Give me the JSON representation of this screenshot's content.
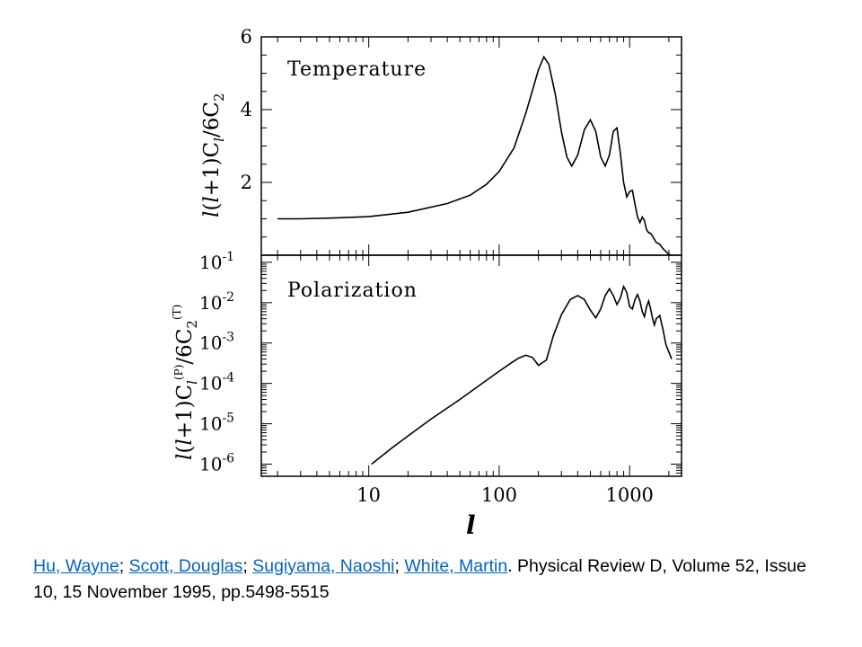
{
  "chart_data": [
    {
      "type": "line",
      "panel": "top",
      "annotation": "Temperature",
      "ylabel": "l(l+1)C_l/6C_2",
      "xscale": "log",
      "xlim": [
        1.5,
        2500
      ],
      "ylim": [
        0,
        6
      ],
      "yticks": [
        2,
        4,
        6
      ],
      "grid": false,
      "series": [
        {
          "x": [
            2,
            3,
            5,
            10,
            20,
            40,
            60,
            80,
            100,
            130,
            160,
            200,
            220,
            240,
            270,
            300,
            330,
            360,
            400,
            450,
            500,
            550,
            600,
            650,
            700,
            750,
            800,
            850,
            900,
            950,
            1000,
            1050,
            1100,
            1150,
            1200,
            1250,
            1300,
            1350,
            1400,
            1450,
            1500,
            1600,
            1700,
            1800,
            1900,
            2000,
            2100
          ],
          "y": [
            1.0,
            1.0,
            1.02,
            1.06,
            1.18,
            1.42,
            1.65,
            1.95,
            2.3,
            2.95,
            3.9,
            5.1,
            5.45,
            5.25,
            4.4,
            3.4,
            2.7,
            2.45,
            2.75,
            3.45,
            3.72,
            3.4,
            2.7,
            2.45,
            2.75,
            3.4,
            3.5,
            2.8,
            2.0,
            1.6,
            1.75,
            1.78,
            1.4,
            1.05,
            0.9,
            1.05,
            0.95,
            0.7,
            0.62,
            0.6,
            0.52,
            0.35,
            0.3,
            0.18,
            0.1,
            0.02,
            0.0
          ]
        }
      ]
    },
    {
      "type": "line",
      "panel": "bottom",
      "annotation": "Polarization",
      "ylabel": "l(l+1)C_l^(P)/6C_2^(T)",
      "xlabel": "l",
      "xscale": "log",
      "yscale": "log",
      "xlim": [
        1.5,
        2500
      ],
      "ylim": [
        5e-07,
        0.15
      ],
      "yticks": [
        "10",
        "10",
        "10",
        "10",
        "10",
        "10"
      ],
      "ytick_exponents": [
        "-1",
        "-2",
        "-3",
        "-4",
        "-5",
        "-6"
      ],
      "xticks": [
        "10",
        "100",
        "1000"
      ],
      "grid": false,
      "series": [
        {
          "x": [
            10.5,
            15,
            20,
            30,
            50,
            80,
            100,
            120,
            140,
            160,
            180,
            200,
            230,
            260,
            300,
            350,
            400,
            450,
            500,
            550,
            600,
            650,
            700,
            750,
            800,
            850,
            900,
            950,
            1000,
            1050,
            1100,
            1150,
            1200,
            1250,
            1300,
            1350,
            1400,
            1450,
            1500,
            1550,
            1600,
            1700,
            1800,
            1900,
            2000,
            2100
          ],
          "y": [
            1e-06,
            2.5e-06,
            5e-06,
            1.3e-05,
            4e-05,
            0.00012,
            0.0002,
            0.0003,
            0.00042,
            0.0005,
            0.00044,
            0.00028,
            0.00038,
            0.0015,
            0.005,
            0.012,
            0.015,
            0.012,
            0.0065,
            0.0042,
            0.007,
            0.015,
            0.022,
            0.015,
            0.009,
            0.013,
            0.025,
            0.018,
            0.008,
            0.007,
            0.012,
            0.016,
            0.011,
            0.006,
            0.0045,
            0.008,
            0.011,
            0.007,
            0.004,
            0.0028,
            0.004,
            0.0048,
            0.0022,
            0.0009,
            0.0006,
            0.0004
          ]
        }
      ]
    }
  ],
  "citation": {
    "authors": [
      "Hu, Wayne",
      "Scott, Douglas",
      "Sugiyama, Naoshi",
      "White, Martin"
    ],
    "separator": "; ",
    "rest": ". Physical Review D, Volume 52, Issue 10, 15 November 1995, pp.5498-5515"
  }
}
